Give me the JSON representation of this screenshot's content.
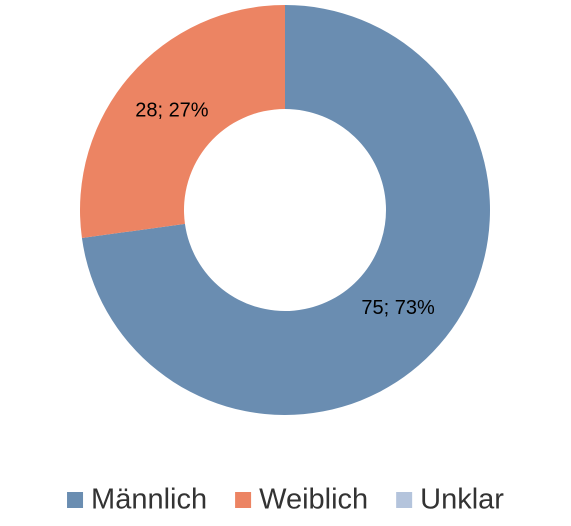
{
  "chart_data": {
    "type": "donut",
    "categories": [
      "Männlich",
      "Weiblich",
      "Unklar"
    ],
    "values": [
      75,
      28,
      0
    ],
    "value_labels": [
      "75; 73%",
      "28; 27%",
      null
    ],
    "colors": [
      "#6a8db1",
      "#ec8463",
      "#b4c4dc"
    ],
    "legend": "bottom"
  }
}
